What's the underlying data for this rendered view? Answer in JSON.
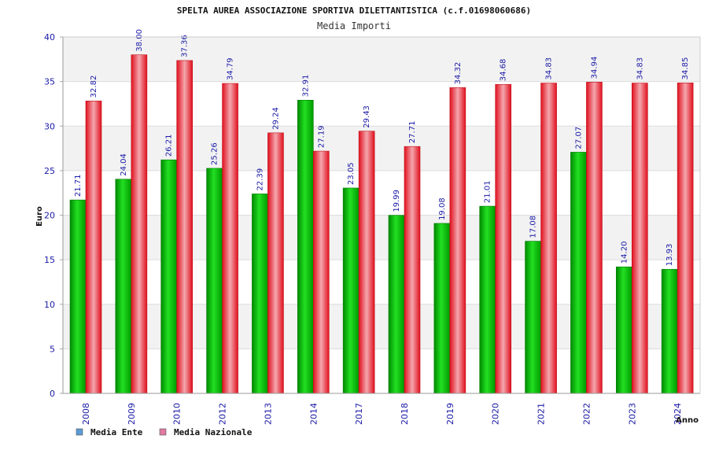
{
  "chart_data": {
    "type": "bar",
    "title": "SPELTA AUREA ASSOCIAZIONE SPORTIVA DILETTANTISTICA (c.f.01698060686)",
    "subtitle": "Media Importi",
    "xlabel": "Anno",
    "ylabel": "Euro",
    "ylim": [
      0,
      40
    ],
    "yticks": [
      "0",
      "5",
      "10",
      "15",
      "20",
      "25",
      "30",
      "35",
      "40"
    ],
    "grid": true,
    "legend_position": "bottom-left",
    "categories": [
      "2008",
      "2009",
      "2010",
      "2012",
      "2013",
      "2014",
      "2017",
      "2018",
      "2019",
      "2020",
      "2021",
      "2022",
      "2023",
      "2024"
    ],
    "series": [
      {
        "name": "Media Ente",
        "color": "#00b400",
        "legend_color": "#5b9bd5",
        "values": [
          21.71,
          24.04,
          26.21,
          25.26,
          22.39,
          32.91,
          23.05,
          19.99,
          19.08,
          21.01,
          17.08,
          27.07,
          14.2,
          13.93
        ],
        "labels": [
          "21.71",
          "24.04",
          "26.21",
          "25.26",
          "22.39",
          "32.91",
          "23.05",
          "19.99",
          "19.08",
          "21.01",
          "17.08",
          "27.07",
          "14.20",
          "13.93"
        ]
      },
      {
        "name": "Media Nazionale",
        "color": "#e8283c",
        "legend_color": "#e07aa0",
        "values": [
          32.82,
          38.0,
          37.36,
          34.79,
          29.24,
          27.19,
          29.43,
          27.71,
          34.32,
          34.68,
          34.83,
          34.94,
          34.83,
          34.85
        ],
        "labels": [
          "32.82",
          "38.00",
          "37.36",
          "34.79",
          "29.24",
          "27.19",
          "29.43",
          "27.71",
          "34.32",
          "34.68",
          "34.83",
          "34.94",
          "34.83",
          "34.85"
        ]
      }
    ]
  }
}
